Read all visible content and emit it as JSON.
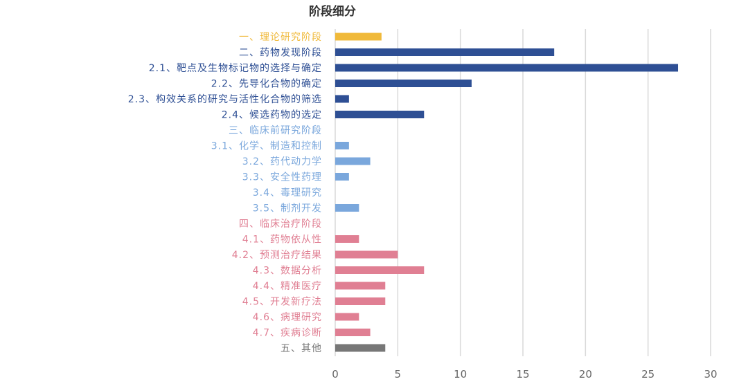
{
  "chart_data": {
    "type": "bar",
    "orientation": "horizontal",
    "title": "阶段细分",
    "xlabel": "",
    "ylabel": "",
    "xlim": [
      0,
      30
    ],
    "xticks": [
      0,
      5,
      10,
      15,
      20,
      25,
      30
    ],
    "grid": true,
    "legend": "none",
    "categories": [
      {
        "label": "一、理论研究阶段",
        "value": 3.7,
        "color": "#f0b93a"
      },
      {
        "label": "二、药物发现阶段",
        "value": 17.5,
        "color": "#2e4f94"
      },
      {
        "label": "2.1、靶点及生物标记物的选择与确定",
        "value": 27.4,
        "color": "#2e4f94"
      },
      {
        "label": "2.2、先导化合物的确定",
        "value": 10.9,
        "color": "#2e4f94"
      },
      {
        "label": "2.3、构效关系的研究与活性化合物的筛选",
        "value": 1.1,
        "color": "#2e4f94"
      },
      {
        "label": "2.4、候选药物的选定",
        "value": 7.1,
        "color": "#2e4f94"
      },
      {
        "label": "三、临床前研究阶段",
        "value": 0,
        "color": "#7aa7dc"
      },
      {
        "label": "3.1、化学、制造和控制",
        "value": 1.1,
        "color": "#7aa7dc"
      },
      {
        "label": "3.2、药代动力学",
        "value": 2.8,
        "color": "#7aa7dc"
      },
      {
        "label": "3.3、安全性药理",
        "value": 1.1,
        "color": "#7aa7dc"
      },
      {
        "label": "3.4、毒理研究",
        "value": 0,
        "color": "#7aa7dc"
      },
      {
        "label": "3.5、制剂开发",
        "value": 1.9,
        "color": "#7aa7dc"
      },
      {
        "label": "四、临床治疗阶段",
        "value": 0,
        "color": "#e07f93"
      },
      {
        "label": "4.1、药物依从性",
        "value": 1.9,
        "color": "#e07f93"
      },
      {
        "label": "4.2、预测治疗结果",
        "value": 5,
        "color": "#e07f93"
      },
      {
        "label": "4.3、数据分析",
        "value": 7.1,
        "color": "#e07f93"
      },
      {
        "label": "4.4、精准医疗",
        "value": 4,
        "color": "#e07f93"
      },
      {
        "label": "4.5、开发新疗法",
        "value": 4,
        "color": "#e07f93"
      },
      {
        "label": "4.6、病理研究",
        "value": 1.9,
        "color": "#e07f93"
      },
      {
        "label": "4.7、疾病诊断",
        "value": 2.8,
        "color": "#e07f93"
      },
      {
        "label": "五、其他",
        "value": 4,
        "color": "#777777"
      }
    ]
  }
}
